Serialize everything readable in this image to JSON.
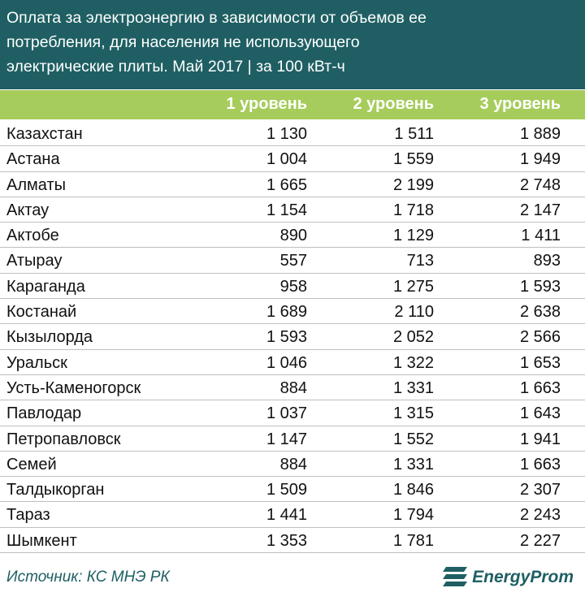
{
  "header": {
    "title_lines": [
      "Оплата за электроэнергию в зависимости от объемов ее",
      "потребления, для населения не использующего",
      "электрические плиты. Май 2017 | за 100 кВт-ч"
    ]
  },
  "chart_data": {
    "type": "table",
    "title": "Оплата за электроэнергию в зависимости от объемов ее потребления, для населения не использующего электрические плиты. Май 2017 | за 100 кВт-ч",
    "columns": [
      "1 уровень",
      "2 уровень",
      "3 уровень"
    ],
    "rows": [
      {
        "city": "Казахстан",
        "values": [
          "1 130",
          "1 511",
          "1 889"
        ]
      },
      {
        "city": "Астана",
        "values": [
          "1 004",
          "1 559",
          "1 949"
        ]
      },
      {
        "city": "Алматы",
        "values": [
          "1 665",
          "2 199",
          "2 748"
        ]
      },
      {
        "city": "Актау",
        "values": [
          "1 154",
          "1 718",
          "2 147"
        ]
      },
      {
        "city": "Актобе",
        "values": [
          "890",
          "1 129",
          "1 411"
        ]
      },
      {
        "city": "Атырау",
        "values": [
          "557",
          "713",
          "893"
        ]
      },
      {
        "city": "Караганда",
        "values": [
          "958",
          "1 275",
          "1 593"
        ]
      },
      {
        "city": "Костанай",
        "values": [
          "1 689",
          "2 110",
          "2 638"
        ]
      },
      {
        "city": "Кызылорда",
        "values": [
          "1 593",
          "2 052",
          "2 566"
        ]
      },
      {
        "city": "Уральск",
        "values": [
          "1 046",
          "1 322",
          "1 653"
        ]
      },
      {
        "city": "Усть-Каменогорск",
        "values": [
          "884",
          "1 331",
          "1 663"
        ]
      },
      {
        "city": "Павлодар",
        "values": [
          "1 037",
          "1 315",
          "1 643"
        ]
      },
      {
        "city": "Петропавловск",
        "values": [
          "1 147",
          "1 552",
          "1 941"
        ]
      },
      {
        "city": "Семей",
        "values": [
          "884",
          "1 331",
          "1 663"
        ]
      },
      {
        "city": "Талдыкорган",
        "values": [
          "1 509",
          "1 846",
          "2 307"
        ]
      },
      {
        "city": "Тараз",
        "values": [
          "1 441",
          "1 794",
          "2 243"
        ]
      },
      {
        "city": "Шымкент",
        "values": [
          "1 353",
          "1 781",
          "2 227"
        ]
      }
    ]
  },
  "footer": {
    "source": "Источник: КС МНЭ РК",
    "logo_text": "EnergyProm",
    "logo_icon": "energyprom-logo-icon"
  },
  "colors": {
    "header_bg": "#1f5f63",
    "column_header_bg": "#a6cc5c",
    "accent": "#1f5f63"
  }
}
